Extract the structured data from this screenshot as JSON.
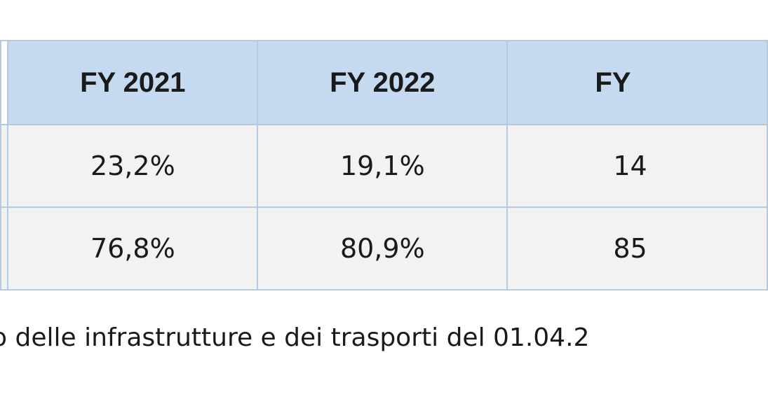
{
  "table": {
    "headers": [
      "FY 2021",
      "FY 2022",
      "FY"
    ],
    "rows": [
      [
        "23,2%",
        "19,1%",
        "14"
      ],
      [
        "76,8%",
        "80,9%",
        "85"
      ]
    ]
  },
  "footnote": "o delle infrastrutture e dei trasporti del 01.04.2"
}
